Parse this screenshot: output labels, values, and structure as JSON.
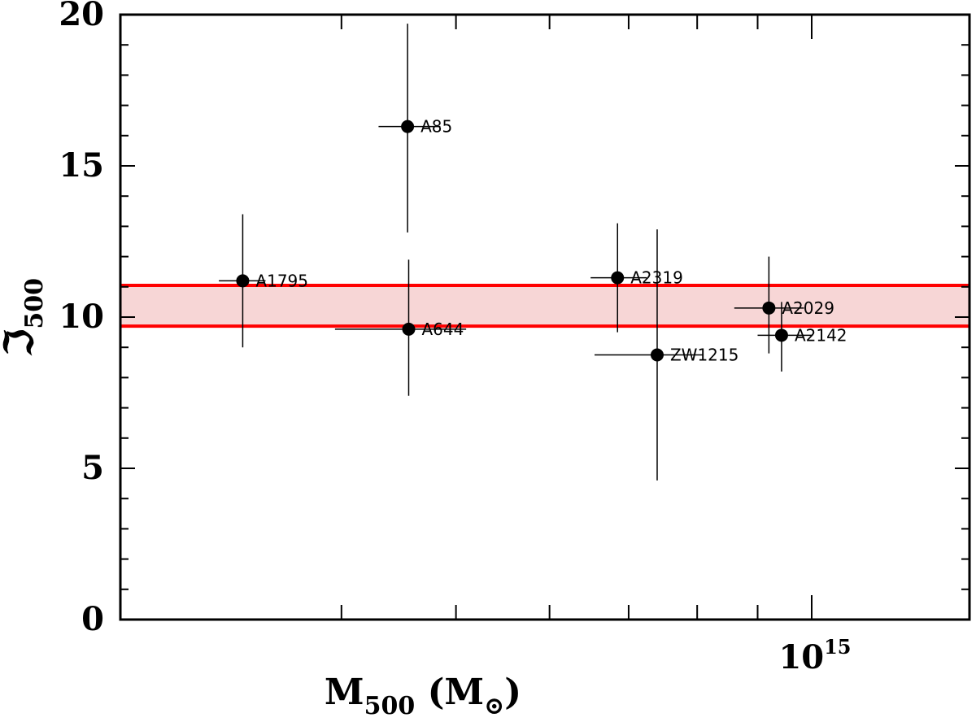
{
  "chart_data": {
    "type": "scatter",
    "xlabel": {
      "main": "M",
      "sub": "500",
      "unit_open": " (M",
      "unit_sub": "⊙",
      "unit_close": ")"
    },
    "ylabel": {
      "main": "ℑ",
      "sub": "500"
    },
    "x_scale": "log",
    "xlim": [
      260000000000000.0,
      1360000000000000.0
    ],
    "ylim": [
      0,
      20
    ],
    "y_ticks": [
      0,
      5,
      10,
      15,
      20
    ],
    "y_minor_step": 1,
    "x_major_tick_label": {
      "value": 1000000000000000.0,
      "base": "10",
      "exp": "15"
    },
    "x_ticks": [
      400000000000000.0,
      500000000000000.0,
      600000000000000.0,
      700000000000000.0,
      800000000000000.0,
      900000000000000.0,
      1000000000000000.0
    ],
    "band": {
      "low": 9.7,
      "high": 11.05,
      "line_color": "#ff0000",
      "fill_color": "#f7d6d6"
    },
    "points": [
      {
        "name": "A1795",
        "x": 330000000000000.0,
        "y": 11.2,
        "xerr": [
          315000000000000.0,
          345000000000000.0
        ],
        "yerr": [
          9.0,
          13.4
        ]
      },
      {
        "name": "A85",
        "x": 455000000000000.0,
        "y": 16.3,
        "xerr": [
          430000000000000.0,
          485000000000000.0
        ],
        "yerr": [
          12.8,
          19.7
        ]
      },
      {
        "name": "A644",
        "x": 456000000000000.0,
        "y": 9.6,
        "xerr": [
          395000000000000.0,
          510000000000000.0
        ],
        "yerr": [
          7.4,
          11.9
        ]
      },
      {
        "name": "A2319",
        "x": 685000000000000.0,
        "y": 11.3,
        "xerr": [
          650000000000000.0,
          725000000000000.0
        ],
        "yerr": [
          9.5,
          13.1
        ]
      },
      {
        "name": "ZW1215",
        "x": 740000000000000.0,
        "y": 8.75,
        "xerr": [
          655000000000000.0,
          810000000000000.0
        ],
        "yerr": [
          4.6,
          12.9
        ]
      },
      {
        "name": "A2029",
        "x": 920000000000000.0,
        "y": 10.3,
        "xerr": [
          860000000000000.0,
          985000000000000.0
        ],
        "yerr": [
          8.8,
          12.0
        ]
      },
      {
        "name": "A2142",
        "x": 943000000000000.0,
        "y": 9.4,
        "xerr": [
          900000000000000.0,
          1000000000000000.0
        ],
        "yerr": [
          8.2,
          10.5
        ]
      }
    ]
  }
}
